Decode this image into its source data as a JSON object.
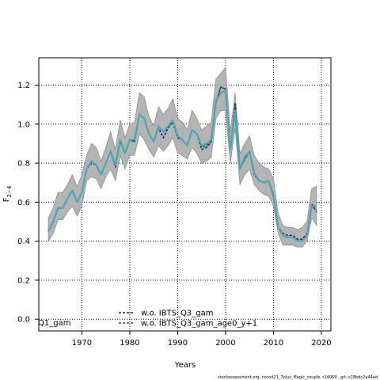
{
  "chart_data": {
    "type": "line",
    "xlabel": "Years",
    "ylabel_main": "F",
    "ylabel_sub": "2−4",
    "xlim": [
      1961,
      2022
    ],
    "ylim": [
      -0.06,
      1.34
    ],
    "xticks": [
      1970,
      1980,
      1990,
      2000,
      2010,
      2020
    ],
    "yticks": [
      0.0,
      0.2,
      0.4,
      0.6,
      0.8,
      1.0,
      1.2
    ],
    "ytick_labels": [
      "0.0",
      "0.2",
      "0.4",
      "0.6",
      "0.8",
      "1.0",
      "1.2"
    ],
    "grid": true,
    "legend_position": "bottom-center",
    "corner_label": "Q1_gam",
    "footer": "stockassessment.org, nscod21_7plus_Magic_couple, r14069 , git: c28bdc2a44ad",
    "band": {
      "years": [
        1963,
        1964,
        1965,
        1966,
        1967,
        1968,
        1969,
        1970,
        1971,
        1972,
        1973,
        1974,
        1975,
        1976,
        1977,
        1978,
        1979,
        1980,
        1981,
        1982,
        1983,
        1984,
        1985,
        1986,
        1987,
        1988,
        1989,
        1990,
        1991,
        1992,
        1993,
        1994,
        1995,
        1996,
        1997,
        1998,
        1999,
        2000,
        2001,
        2002,
        2003,
        2004,
        2005,
        2006,
        2007,
        2008,
        2009,
        2010,
        2011,
        2012,
        2013,
        2014,
        2015,
        2016,
        2017,
        2018,
        2019
      ],
      "lower": [
        0.4,
        0.44,
        0.51,
        0.51,
        0.55,
        0.58,
        0.53,
        0.58,
        0.71,
        0.73,
        0.72,
        0.67,
        0.73,
        0.77,
        0.71,
        0.84,
        0.77,
        0.84,
        0.84,
        0.95,
        0.92,
        0.87,
        0.83,
        0.89,
        0.86,
        0.89,
        0.93,
        0.85,
        0.84,
        0.82,
        0.88,
        0.85,
        0.8,
        0.81,
        0.83,
        1.03,
        1.07,
        1.07,
        0.8,
        0.98,
        0.69,
        0.74,
        0.77,
        0.69,
        0.66,
        0.64,
        0.63,
        0.58,
        0.44,
        0.38,
        0.38,
        0.38,
        0.37,
        0.37,
        0.4,
        0.52,
        0.48
      ],
      "upper": [
        0.52,
        0.57,
        0.65,
        0.65,
        0.69,
        0.74,
        0.68,
        0.74,
        0.84,
        0.9,
        0.88,
        0.81,
        0.88,
        0.96,
        0.87,
        1.02,
        0.93,
        1.0,
        1.01,
        1.16,
        1.14,
        1.04,
        0.99,
        1.09,
        1.05,
        1.08,
        1.13,
        1.03,
        1.01,
        0.97,
        1.07,
        1.03,
        0.97,
        0.99,
        1.01,
        1.23,
        1.26,
        1.29,
        0.96,
        1.16,
        0.85,
        0.9,
        0.94,
        0.84,
        0.8,
        0.78,
        0.77,
        0.72,
        0.54,
        0.48,
        0.47,
        0.47,
        0.46,
        0.47,
        0.5,
        0.67,
        0.68
      ]
    },
    "series": [
      {
        "name": "w.o. IBTS_Q3_gam",
        "color": "#1b1b8c",
        "dashed": true,
        "values": [
          0.45,
          0.5,
          0.57,
          0.57,
          0.62,
          0.66,
          0.6,
          0.65,
          0.77,
          0.8,
          0.79,
          0.74,
          0.8,
          0.86,
          0.78,
          0.91,
          0.85,
          0.92,
          0.91,
          1.05,
          1.03,
          0.95,
          0.91,
          0.98,
          0.93,
          0.98,
          1.01,
          0.93,
          0.92,
          0.89,
          0.97,
          0.95,
          0.87,
          0.88,
          0.91,
          1.11,
          1.19,
          1.18,
          0.87,
          1.11,
          0.77,
          0.82,
          0.86,
          0.74,
          0.71,
          0.7,
          0.71,
          0.64,
          0.47,
          0.44,
          0.43,
          0.43,
          0.41,
          0.41,
          0.44,
          0.59,
          0.55
        ]
      },
      {
        "name": "w.o. IBTS_Q3_gam_age0_y+1",
        "color": "#0f5a4b",
        "dashed": true,
        "values": [
          0.45,
          0.5,
          0.57,
          0.57,
          0.62,
          0.66,
          0.6,
          0.65,
          0.77,
          0.81,
          0.79,
          0.74,
          0.8,
          0.86,
          0.79,
          0.92,
          0.85,
          0.92,
          0.91,
          1.05,
          1.03,
          0.95,
          0.91,
          0.99,
          0.96,
          0.98,
          1.01,
          0.93,
          0.92,
          0.89,
          0.97,
          0.95,
          0.88,
          0.89,
          0.91,
          1.11,
          1.19,
          1.18,
          0.87,
          1.09,
          0.77,
          0.82,
          0.86,
          0.75,
          0.71,
          0.7,
          0.71,
          0.64,
          0.47,
          0.43,
          0.42,
          0.42,
          0.4,
          0.4,
          0.43,
          0.58,
          0.56
        ]
      },
      {
        "name": "",
        "color": "#4aa8b0",
        "dashed": false,
        "values": [
          0.45,
          0.5,
          0.57,
          0.57,
          0.62,
          0.66,
          0.6,
          0.65,
          0.77,
          0.81,
          0.79,
          0.74,
          0.8,
          0.86,
          0.79,
          0.92,
          0.85,
          0.92,
          0.92,
          1.05,
          1.03,
          0.95,
          0.91,
          0.99,
          0.96,
          0.99,
          1.02,
          0.94,
          0.92,
          0.89,
          0.97,
          0.95,
          0.89,
          0.9,
          0.92,
          1.12,
          1.16,
          1.17,
          0.87,
          1.07,
          0.77,
          0.83,
          0.86,
          0.75,
          0.71,
          0.7,
          0.71,
          0.63,
          0.47,
          0.43,
          0.42,
          0.42,
          0.4,
          0.4,
          0.43,
          0.58,
          0.58
        ]
      }
    ]
  }
}
